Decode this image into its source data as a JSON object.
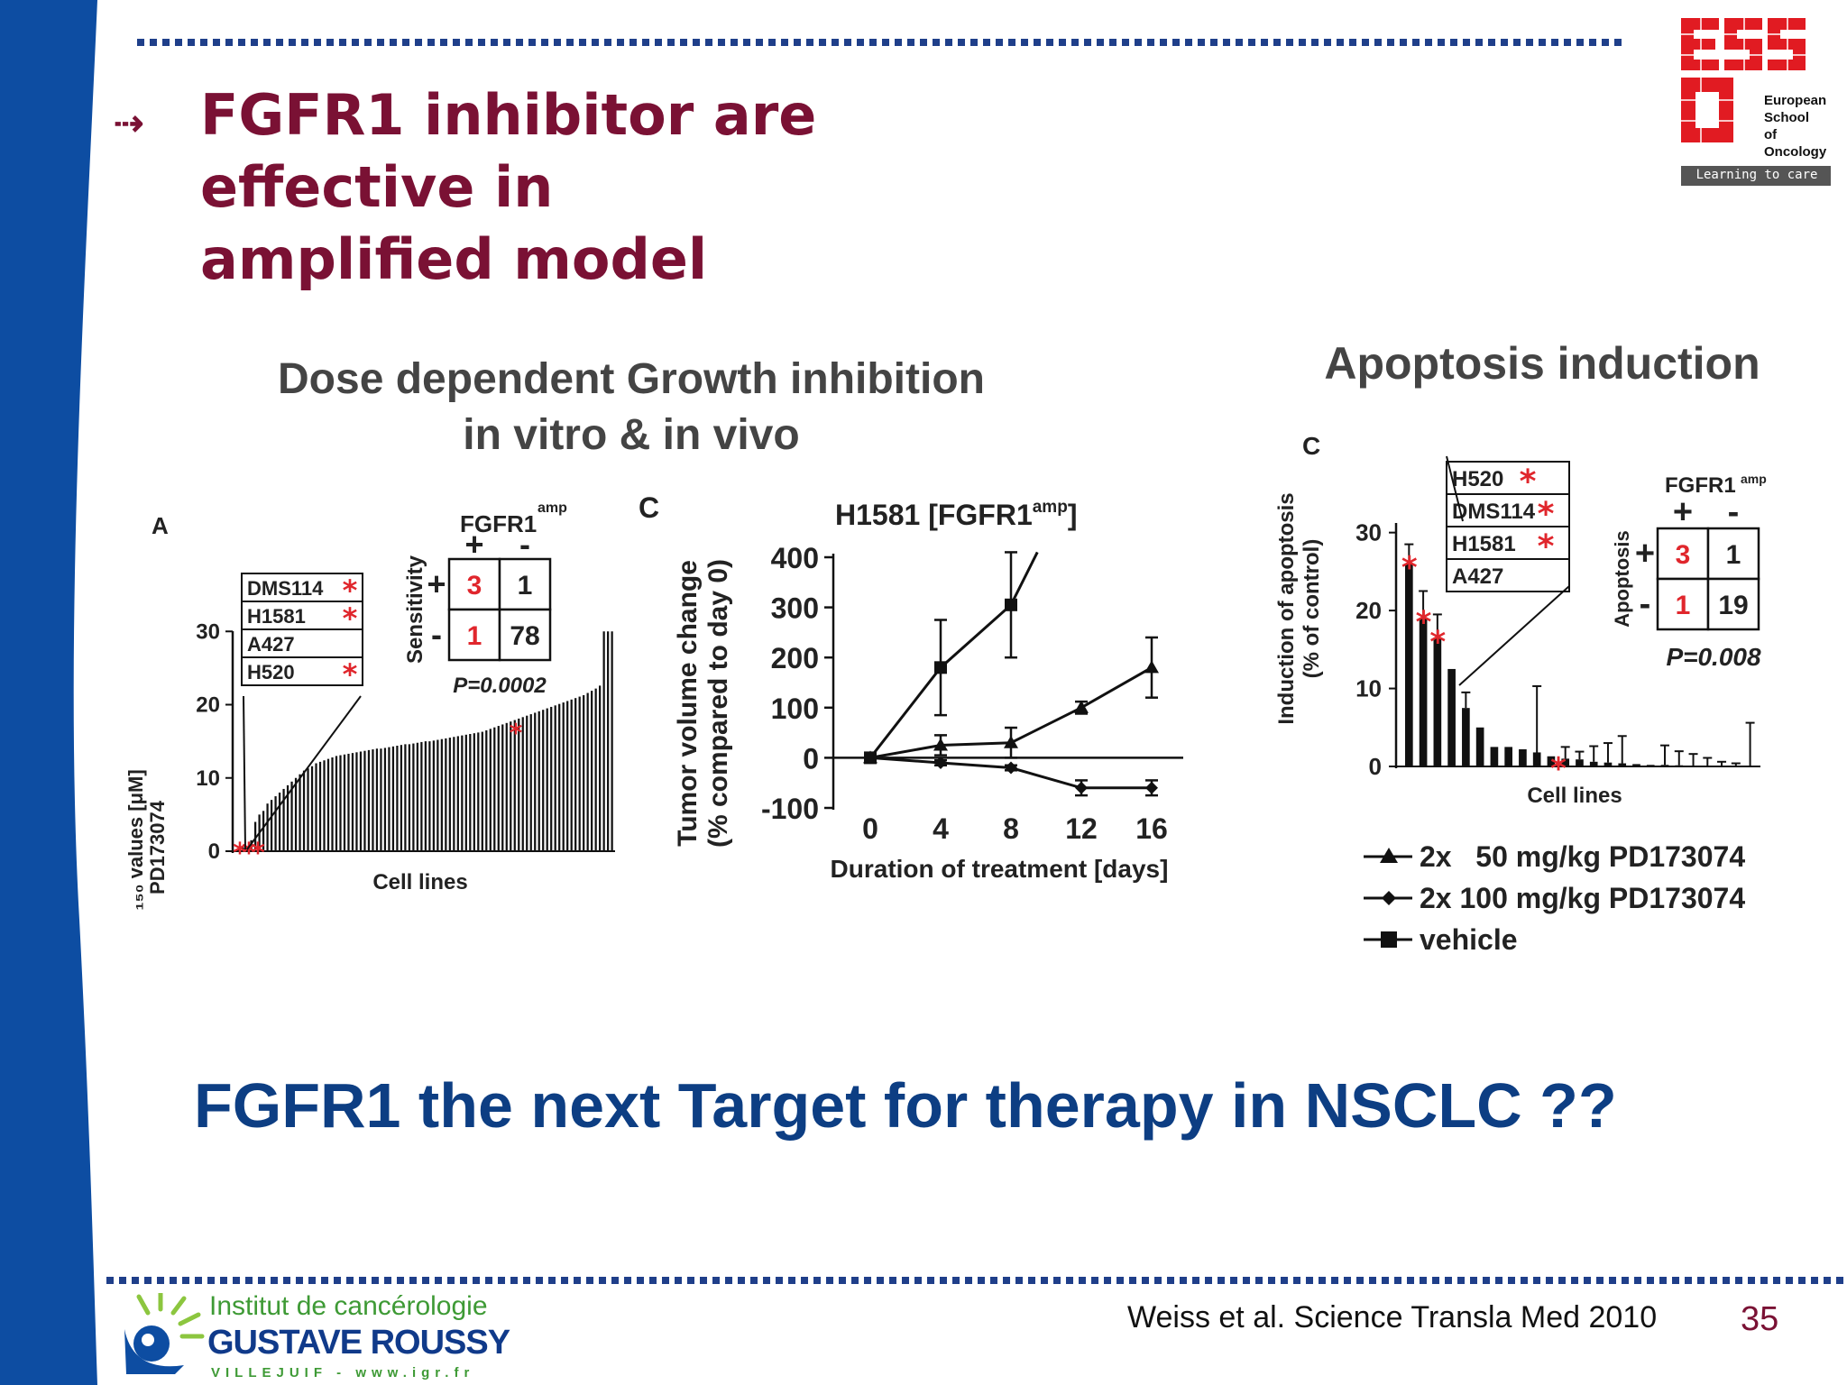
{
  "slide": {
    "title_line1": "FGFR1 inhibitor are effective in",
    "title_line2": "amplified model",
    "bottom_question": "FGFR1 the next Target for therapy in NSCLC ??",
    "citation": "Weiss et al. Science Transla Med  2010",
    "page_number": "35",
    "colors": {
      "sidebar": "#0d4da2",
      "title": "#7a1134",
      "question": "#0d3e83",
      "dots": "#1f3f8a",
      "star": "#e0262c"
    }
  },
  "section_left": {
    "line1": "Dose dependent Growth inhibition",
    "line2": "in vitro & in vivo"
  },
  "section_right": {
    "title": "Apoptosis induction"
  },
  "logo_eso": {
    "lines": [
      "European",
      "School",
      "of",
      "Oncology"
    ],
    "tagline": "Learning to care"
  },
  "logo_igr": {
    "line1": "Institut de cancérologie",
    "line2": "GUSTAVE ROUSSY",
    "line3": "VILLEJUIF - www.igr.fr"
  },
  "chart_data": [
    {
      "type": "bar",
      "panel_label": "A",
      "xlabel": "Cell lines",
      "ylabel_line1": "G₁₅₀ values [μM]",
      "ylabel_line2": "PD173074",
      "yticks": [
        "0",
        "10",
        "20",
        "30"
      ],
      "ylim": [
        0,
        32
      ],
      "highlighted_cell_lines": [
        "DMS114",
        "H1581",
        "A427",
        "H520"
      ],
      "highlight_marked": [
        true,
        true,
        false,
        true
      ],
      "values": [
        0.4,
        0.5,
        0.6,
        1.5,
        4,
        5,
        5.5,
        6.5,
        7,
        7.5,
        8,
        8.5,
        9,
        9.5,
        10,
        10.5,
        11,
        11.3,
        11.6,
        12,
        12.2,
        12.4,
        12.6,
        12.8,
        13,
        13.1,
        13.2,
        13.3,
        13.4,
        13.5,
        13.6,
        13.7,
        13.8,
        13.9,
        14,
        14,
        14.1,
        14.2,
        14.3,
        14.4,
        14.5,
        14.6,
        14.6,
        14.7,
        14.8,
        14.9,
        15,
        15,
        15.1,
        15.2,
        15.3,
        15.4,
        15.5,
        15.6,
        15.7,
        15.8,
        15.9,
        16,
        16.1,
        16.2,
        16.3,
        16.5,
        16.7,
        16.9,
        17.1,
        17.3,
        17.5,
        17.7,
        17.9,
        18.1,
        18.3,
        18.5,
        18.7,
        18.9,
        19.1,
        19.3,
        19.5,
        19.7,
        19.9,
        20.1,
        20.3,
        20.5,
        20.7,
        20.9,
        21.1,
        21.3,
        21.6,
        21.9,
        22.2,
        22.6,
        30,
        30,
        30
      ],
      "inset": {
        "title": "FGFR1",
        "title_sup": "amp",
        "col_headers": [
          "+",
          "-"
        ],
        "row_label": "Sensitivity",
        "row_headers": [
          "+",
          "-"
        ],
        "cells": [
          [
            "3",
            "1"
          ],
          [
            "1",
            "78"
          ]
        ],
        "pvalue": "P=0.0002"
      }
    },
    {
      "type": "line",
      "panel_label": "C",
      "title": "H1581 [FGFR1",
      "title_sup": "amp",
      "title_end": "]",
      "xlabel": "Duration of treatment [days]",
      "ylabel_line1": "Tumor volume change",
      "ylabel_line2": "(% compared to day 0)",
      "x": [
        0,
        4,
        8,
        12,
        16
      ],
      "xticks": [
        "0",
        "4",
        "8",
        "12",
        "16"
      ],
      "yticks": [
        "-100",
        "0",
        "100",
        "200",
        "300",
        "400"
      ],
      "ylim": [
        -100,
        400
      ],
      "series": [
        {
          "name": "vehicle",
          "marker": "square",
          "x": [
            0,
            4,
            8,
            9.5
          ],
          "y": [
            0,
            180,
            305,
            410
          ],
          "err": [
            0,
            95,
            105,
            0
          ]
        },
        {
          "name": "2x 50 mg/kg PD173074",
          "marker": "triangle",
          "x": [
            0,
            4,
            8,
            12,
            16
          ],
          "y": [
            0,
            25,
            30,
            100,
            180
          ],
          "err": [
            0,
            20,
            30,
            12,
            60
          ]
        },
        {
          "name": "2x 100 mg/kg PD173074",
          "marker": "diamond",
          "x": [
            0,
            4,
            8,
            12,
            16
          ],
          "y": [
            0,
            -10,
            -20,
            -60,
            -60
          ],
          "err": [
            0,
            5,
            5,
            15,
            15
          ]
        }
      ]
    },
    {
      "type": "bar",
      "panel_label": "C",
      "xlabel": "Cell lines",
      "ylabel_line1": "Induction of apoptosis",
      "ylabel_line2": "(% of control)",
      "yticks": [
        "0",
        "10",
        "20",
        "30"
      ],
      "ylim": [
        0,
        31
      ],
      "highlighted_cell_lines": [
        "H520",
        "DMS114",
        "H1581",
        "A427"
      ],
      "highlight_marked": [
        true,
        true,
        true,
        false
      ],
      "values": [
        26,
        19,
        16.5,
        12.5,
        7.5,
        5,
        2.5,
        2.5,
        2.2,
        1.8,
        1.3,
        1,
        0.9,
        0.6,
        0.5,
        0.4,
        0.3,
        0.2,
        0.2,
        0.15,
        0.1,
        0.1,
        0.1,
        0.1,
        0.1
      ],
      "errors": [
        2.5,
        3.5,
        3,
        0,
        2,
        0,
        0,
        0,
        0,
        8.5,
        0,
        1.5,
        1,
        2,
        2.5,
        3.5,
        0,
        0,
        2.5,
        1.8,
        1.5,
        1,
        0.5,
        0.3,
        5.5
      ],
      "inset": {
        "title": "FGFR1",
        "title_sup": "amp",
        "col_headers": [
          "+",
          "-"
        ],
        "row_label": "Apoptosis",
        "row_headers": [
          "+",
          "-"
        ],
        "cells": [
          [
            "3",
            "1"
          ],
          [
            "1",
            "19"
          ]
        ],
        "pvalue": "P=0.008"
      },
      "legend": [
        {
          "marker": "triangle",
          "label": "2x   50 mg/kg PD173074"
        },
        {
          "marker": "diamond",
          "label": "2x 100 mg/kg PD173074"
        },
        {
          "marker": "square",
          "label": "vehicle"
        }
      ]
    }
  ]
}
